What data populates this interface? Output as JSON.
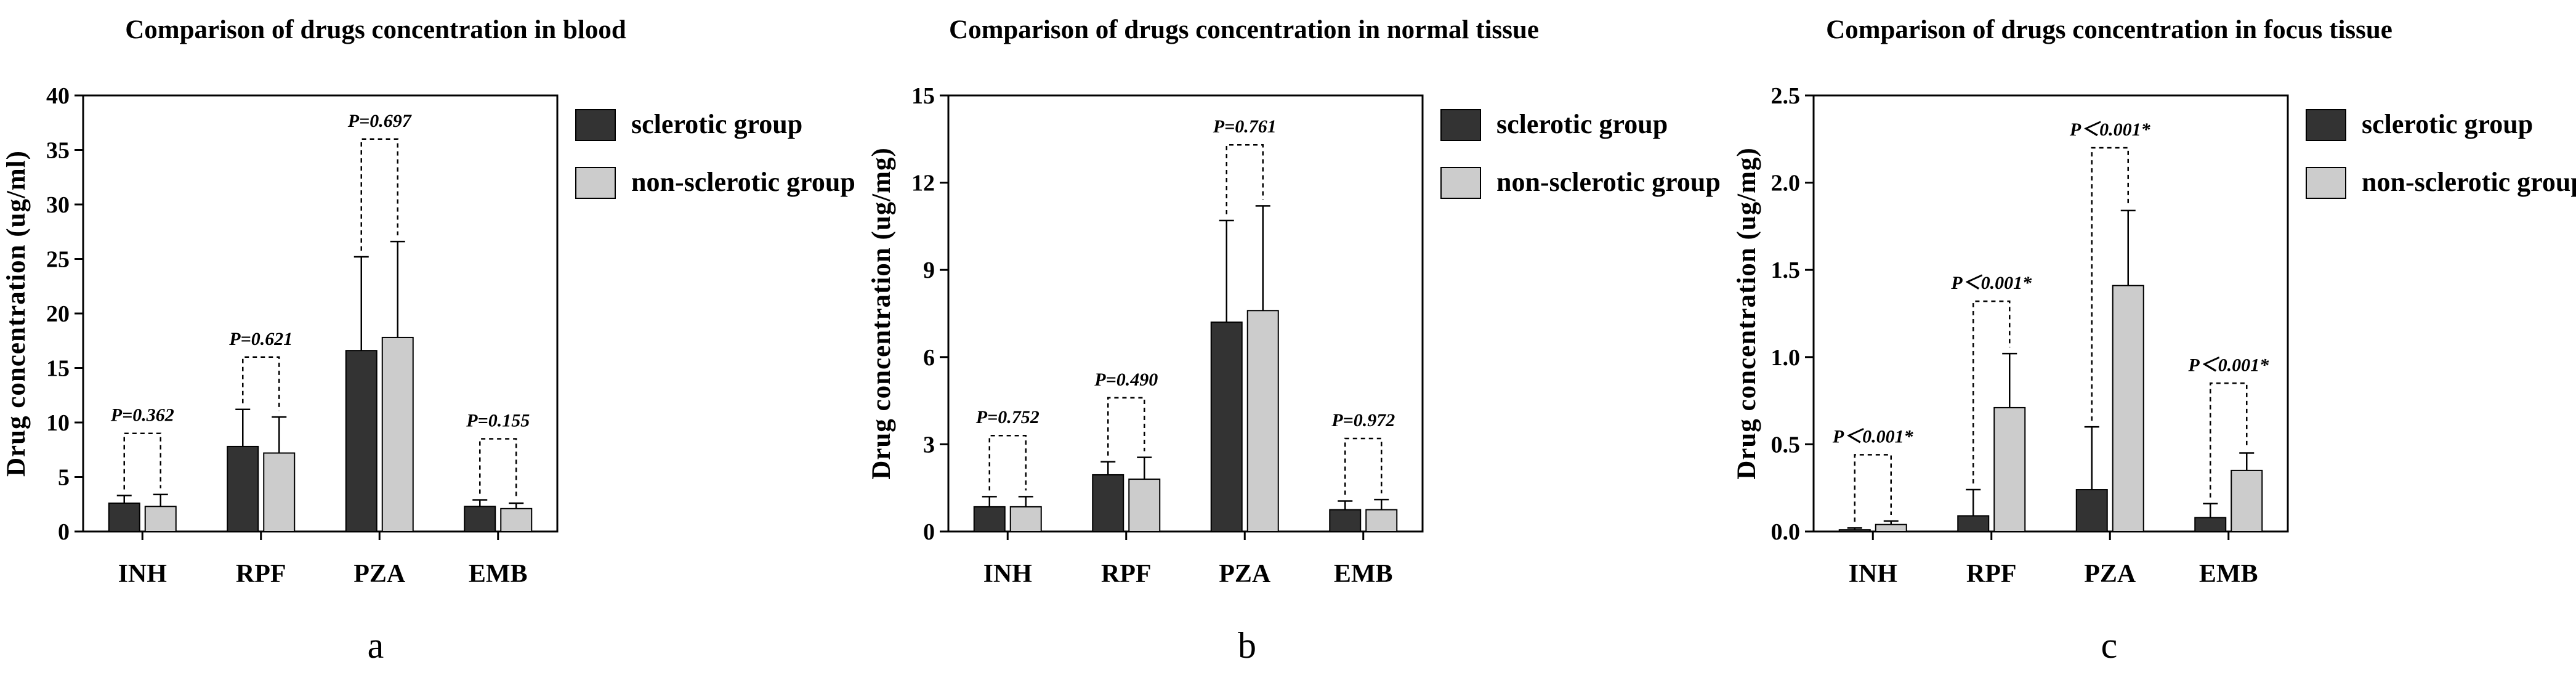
{
  "chart_data": [
    {
      "type": "bar",
      "panel_label": "a",
      "title": "Comparison of drugs concentration in blood",
      "ylabel": "Drug concentration (ug/ml)",
      "xlabel": "",
      "ylim": [
        0,
        40
      ],
      "yticks": [
        "0",
        "5",
        "10",
        "15",
        "20",
        "25",
        "30",
        "35",
        "40"
      ],
      "categories": [
        "INH",
        "RPF",
        "PZA",
        "EMB"
      ],
      "legend_position": "right",
      "series": [
        {
          "name": "sclerotic group",
          "color": "#333333",
          "values": [
            2.6,
            7.8,
            16.6,
            2.3
          ],
          "errors": [
            0.7,
            3.4,
            8.6,
            0.6
          ]
        },
        {
          "name": "non-sclerotic group",
          "color": "#cccccc",
          "values": [
            2.3,
            7.2,
            17.8,
            2.1
          ],
          "errors": [
            1.1,
            3.3,
            8.8,
            0.5
          ]
        }
      ],
      "annotations": [
        {
          "category": "INH",
          "text": "P=0.362",
          "level": 9
        },
        {
          "category": "RPF",
          "text": "P=0.621",
          "level": 16
        },
        {
          "category": "PZA",
          "text": "P=0.697",
          "level": 36
        },
        {
          "category": "EMB",
          "text": "P=0.155",
          "level": 8.5
        }
      ]
    },
    {
      "type": "bar",
      "panel_label": "b",
      "title": "Comparison of drugs concentration in normal tissue",
      "ylabel": "Drug concentration (ug/mg)",
      "xlabel": "",
      "ylim": [
        0,
        15
      ],
      "yticks": [
        "0",
        "3",
        "6",
        "9",
        "12",
        "15"
      ],
      "categories": [
        "INH",
        "RPF",
        "PZA",
        "EMB"
      ],
      "legend_position": "right",
      "series": [
        {
          "name": "sclerotic group",
          "color": "#333333",
          "values": [
            0.85,
            1.95,
            7.2,
            0.75
          ],
          "errors": [
            0.35,
            0.45,
            3.5,
            0.3
          ]
        },
        {
          "name": "non-sclerotic group",
          "color": "#cccccc",
          "values": [
            0.85,
            1.8,
            7.6,
            0.75
          ],
          "errors": [
            0.35,
            0.75,
            3.6,
            0.35
          ]
        }
      ],
      "annotations": [
        {
          "category": "INH",
          "text": "P=0.752",
          "level": 3.3
        },
        {
          "category": "RPF",
          "text": "P=0.490",
          "level": 4.6
        },
        {
          "category": "PZA",
          "text": "P=0.761",
          "level": 13.3
        },
        {
          "category": "EMB",
          "text": "P=0.972",
          "level": 3.2
        }
      ]
    },
    {
      "type": "bar",
      "panel_label": "c",
      "title": "Comparison of drugs concentration in focus tissue",
      "ylabel": "Drug concentration (ug/mg)",
      "xlabel": "",
      "ylim": [
        0,
        2.5
      ],
      "yticks": [
        "0.0",
        "0.5",
        "1.0",
        "1.5",
        "2.0",
        "2.5"
      ],
      "categories": [
        "INH",
        "RPF",
        "PZA",
        "EMB"
      ],
      "legend_position": "right",
      "series": [
        {
          "name": "sclerotic group",
          "color": "#333333",
          "values": [
            0.01,
            0.09,
            0.24,
            0.08
          ],
          "errors": [
            0.01,
            0.15,
            0.36,
            0.08
          ]
        },
        {
          "name": "non-sclerotic group",
          "color": "#cccccc",
          "values": [
            0.04,
            0.71,
            1.41,
            0.35
          ],
          "errors": [
            0.02,
            0.31,
            0.43,
            0.1
          ]
        }
      ],
      "annotations": [
        {
          "category": "INH",
          "text": "P＜0.001*",
          "level": 0.44
        },
        {
          "category": "RPF",
          "text": "P＜0.001*",
          "level": 1.32
        },
        {
          "category": "PZA",
          "text": "P＜0.001*",
          "level": 2.2
        },
        {
          "category": "EMB",
          "text": "P＜0.001*",
          "level": 0.85
        }
      ]
    }
  ]
}
